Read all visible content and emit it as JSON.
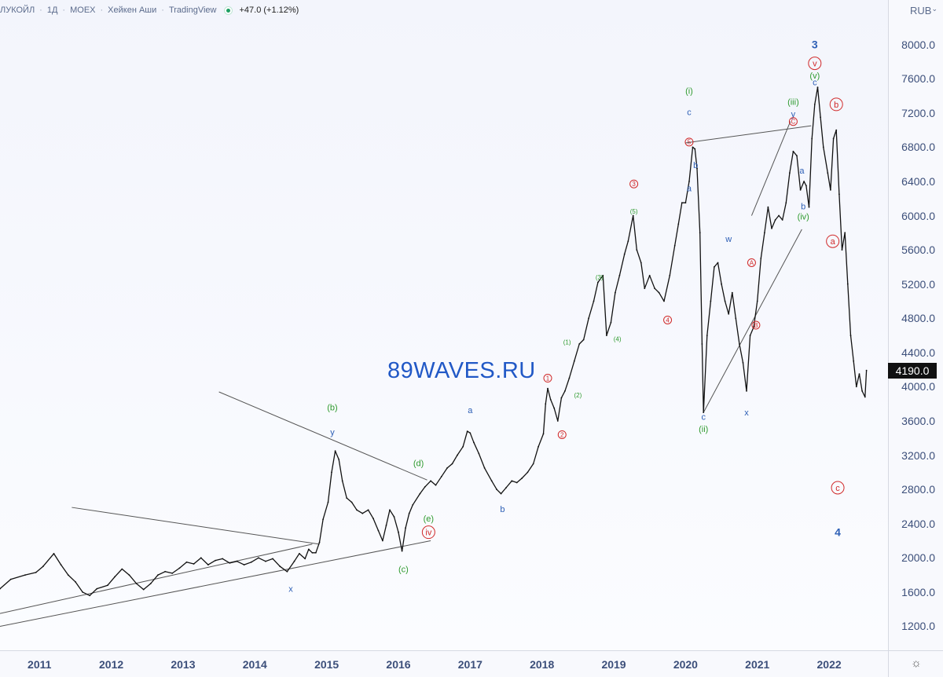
{
  "header": {
    "symbol": "ЛУКОЙЛ",
    "interval": "1Д",
    "exchange": "MOEX",
    "chart_style": "Хейкен Аши",
    "provider": "TradingView",
    "change": "+47.0 (+1.12%)"
  },
  "price_axis": {
    "currency": "RUB",
    "ticks": [
      "8000.0",
      "7600.0",
      "7200.0",
      "6800.0",
      "6400.0",
      "6000.0",
      "5600.0",
      "5200.0",
      "4800.0",
      "4400.0",
      "4000.0",
      "3600.0",
      "3200.0",
      "2800.0",
      "2400.0",
      "2000.0",
      "1600.0",
      "1200.0"
    ],
    "last_price": "4190.0"
  },
  "time_axis": {
    "ticks": [
      "2011",
      "2012",
      "2013",
      "2014",
      "2015",
      "2016",
      "2017",
      "2018",
      "2019",
      "2020",
      "2021",
      "2022"
    ]
  },
  "watermark": "89WAVES.RU",
  "colors": {
    "blue": "#2d5fb5",
    "green": "#2e9a2e",
    "red": "#d12a2a",
    "line": "#555555",
    "price": "#111111"
  },
  "chart_data": {
    "type": "line",
    "title": "",
    "xlabel": "",
    "ylabel": "",
    "ylim": [
      920,
      8520
    ],
    "xlim": [
      2010.45,
      2022.82
    ],
    "series": [
      {
        "name": "",
        "points": [
          [
            2010.45,
            1640
          ],
          [
            2010.6,
            1750
          ],
          [
            2010.8,
            1800
          ],
          [
            2010.95,
            1830
          ],
          [
            2011.05,
            1900
          ],
          [
            2011.2,
            2050
          ],
          [
            2011.3,
            1920
          ],
          [
            2011.4,
            1800
          ],
          [
            2011.5,
            1720
          ],
          [
            2011.6,
            1600
          ],
          [
            2011.7,
            1560
          ],
          [
            2011.8,
            1640
          ],
          [
            2011.95,
            1680
          ],
          [
            2012.05,
            1780
          ],
          [
            2012.15,
            1870
          ],
          [
            2012.25,
            1800
          ],
          [
            2012.35,
            1700
          ],
          [
            2012.45,
            1630
          ],
          [
            2012.55,
            1700
          ],
          [
            2012.65,
            1800
          ],
          [
            2012.75,
            1840
          ],
          [
            2012.85,
            1820
          ],
          [
            2012.95,
            1880
          ],
          [
            2013.05,
            1950
          ],
          [
            2013.15,
            1930
          ],
          [
            2013.25,
            2000
          ],
          [
            2013.35,
            1920
          ],
          [
            2013.45,
            1970
          ],
          [
            2013.55,
            1990
          ],
          [
            2013.65,
            1940
          ],
          [
            2013.75,
            1960
          ],
          [
            2013.85,
            1920
          ],
          [
            2013.95,
            1950
          ],
          [
            2014.05,
            2000
          ],
          [
            2014.15,
            1960
          ],
          [
            2014.25,
            1990
          ],
          [
            2014.35,
            1900
          ],
          [
            2014.45,
            1840
          ],
          [
            2014.55,
            1960
          ],
          [
            2014.62,
            2050
          ],
          [
            2014.7,
            1990
          ],
          [
            2014.75,
            2100
          ],
          [
            2014.8,
            2060
          ],
          [
            2014.85,
            2060
          ],
          [
            2014.9,
            2180
          ],
          [
            2014.95,
            2450
          ],
          [
            2015.02,
            2650
          ],
          [
            2015.07,
            3000
          ],
          [
            2015.12,
            3250
          ],
          [
            2015.17,
            3150
          ],
          [
            2015.22,
            2900
          ],
          [
            2015.28,
            2700
          ],
          [
            2015.35,
            2650
          ],
          [
            2015.42,
            2560
          ],
          [
            2015.5,
            2520
          ],
          [
            2015.58,
            2560
          ],
          [
            2015.65,
            2460
          ],
          [
            2015.72,
            2320
          ],
          [
            2015.78,
            2200
          ],
          [
            2015.83,
            2380
          ],
          [
            2015.88,
            2560
          ],
          [
            2015.94,
            2480
          ],
          [
            2016.0,
            2300
          ],
          [
            2016.05,
            2080
          ],
          [
            2016.1,
            2350
          ],
          [
            2016.15,
            2520
          ],
          [
            2016.2,
            2620
          ],
          [
            2016.3,
            2750
          ],
          [
            2016.37,
            2830
          ],
          [
            2016.45,
            2900
          ],
          [
            2016.52,
            2850
          ],
          [
            2016.6,
            2950
          ],
          [
            2016.68,
            3050
          ],
          [
            2016.75,
            3100
          ],
          [
            2016.82,
            3200
          ],
          [
            2016.9,
            3300
          ],
          [
            2016.96,
            3480
          ],
          [
            2017.0,
            3460
          ],
          [
            2017.05,
            3350
          ],
          [
            2017.12,
            3220
          ],
          [
            2017.2,
            3050
          ],
          [
            2017.3,
            2900
          ],
          [
            2017.37,
            2800
          ],
          [
            2017.43,
            2750
          ],
          [
            2017.5,
            2820
          ],
          [
            2017.58,
            2900
          ],
          [
            2017.65,
            2880
          ],
          [
            2017.72,
            2930
          ],
          [
            2017.8,
            3000
          ],
          [
            2017.88,
            3100
          ],
          [
            2017.95,
            3300
          ],
          [
            2018.02,
            3450
          ],
          [
            2018.05,
            3800
          ],
          [
            2018.08,
            3980
          ],
          [
            2018.12,
            3850
          ],
          [
            2018.17,
            3750
          ],
          [
            2018.22,
            3600
          ],
          [
            2018.27,
            3870
          ],
          [
            2018.32,
            3950
          ],
          [
            2018.38,
            4100
          ],
          [
            2018.45,
            4300
          ],
          [
            2018.52,
            4500
          ],
          [
            2018.58,
            4550
          ],
          [
            2018.65,
            4800
          ],
          [
            2018.72,
            5000
          ],
          [
            2018.78,
            5220
          ],
          [
            2018.85,
            5300
          ],
          [
            2018.9,
            4600
          ],
          [
            2018.96,
            4750
          ],
          [
            2019.02,
            5100
          ],
          [
            2019.08,
            5300
          ],
          [
            2019.15,
            5550
          ],
          [
            2019.2,
            5700
          ],
          [
            2019.27,
            6000
          ],
          [
            2019.32,
            5600
          ],
          [
            2019.38,
            5450
          ],
          [
            2019.43,
            5150
          ],
          [
            2019.5,
            5300
          ],
          [
            2019.57,
            5150
          ],
          [
            2019.63,
            5100
          ],
          [
            2019.7,
            5000
          ],
          [
            2019.78,
            5300
          ],
          [
            2019.85,
            5650
          ],
          [
            2019.9,
            5900
          ],
          [
            2019.95,
            6150
          ],
          [
            2020.0,
            6150
          ],
          [
            2020.05,
            6400
          ],
          [
            2020.1,
            6800
          ],
          [
            2020.13,
            6780
          ],
          [
            2020.16,
            6550
          ],
          [
            2020.2,
            5800
          ],
          [
            2020.23,
            4500
          ],
          [
            2020.25,
            3700
          ],
          [
            2020.3,
            4600
          ],
          [
            2020.35,
            5000
          ],
          [
            2020.4,
            5400
          ],
          [
            2020.45,
            5450
          ],
          [
            2020.5,
            5200
          ],
          [
            2020.55,
            5000
          ],
          [
            2020.6,
            4850
          ],
          [
            2020.65,
            5100
          ],
          [
            2020.7,
            4800
          ],
          [
            2020.75,
            4500
          ],
          [
            2020.8,
            4280
          ],
          [
            2020.85,
            3950
          ],
          [
            2020.9,
            4600
          ],
          [
            2020.95,
            4700
          ],
          [
            2021.0,
            5000
          ],
          [
            2021.05,
            5500
          ],
          [
            2021.1,
            5800
          ],
          [
            2021.15,
            6100
          ],
          [
            2021.2,
            5850
          ],
          [
            2021.25,
            5950
          ],
          [
            2021.3,
            6000
          ],
          [
            2021.35,
            5950
          ],
          [
            2021.4,
            6150
          ],
          [
            2021.45,
            6500
          ],
          [
            2021.5,
            6750
          ],
          [
            2021.55,
            6700
          ],
          [
            2021.6,
            6300
          ],
          [
            2021.65,
            6400
          ],
          [
            2021.68,
            6350
          ],
          [
            2021.72,
            6100
          ],
          [
            2021.76,
            6900
          ],
          [
            2021.8,
            7300
          ],
          [
            2021.84,
            7500
          ],
          [
            2021.88,
            7150
          ],
          [
            2021.92,
            6800
          ],
          [
            2021.98,
            6500
          ],
          [
            2022.02,
            6300
          ],
          [
            2022.06,
            6900
          ],
          [
            2022.1,
            7000
          ],
          [
            2022.14,
            6250
          ],
          [
            2022.18,
            5600
          ],
          [
            2022.22,
            5800
          ],
          [
            2022.26,
            5200
          ],
          [
            2022.3,
            4600
          ],
          [
            2022.34,
            4300
          ],
          [
            2022.38,
            4000
          ],
          [
            2022.42,
            4150
          ],
          [
            2022.46,
            3950
          ],
          [
            2022.5,
            3880
          ],
          [
            2022.52,
            4190
          ]
        ]
      }
    ],
    "wave_labels": [
      {
        "text": "x",
        "x": 2014.5,
        "y": 1640,
        "color": "blue"
      },
      {
        "text": "(b)",
        "x": 2015.08,
        "y": 3760,
        "color": "green"
      },
      {
        "text": "y",
        "x": 2015.08,
        "y": 3470,
        "color": "blue"
      },
      {
        "text": "(d)",
        "x": 2016.28,
        "y": 3110,
        "color": "green"
      },
      {
        "text": "(e)",
        "x": 2016.42,
        "y": 2460,
        "color": "green"
      },
      {
        "text": "iv",
        "x": 2016.42,
        "y": 2300,
        "color": "red",
        "circle": true
      },
      {
        "text": "(c)",
        "x": 2016.07,
        "y": 1870,
        "color": "green"
      },
      {
        "text": "a",
        "x": 2017.0,
        "y": 3730,
        "color": "blue"
      },
      {
        "text": "b",
        "x": 2017.45,
        "y": 2570,
        "color": "blue"
      },
      {
        "text": "1",
        "x": 2018.08,
        "y": 4100,
        "color": "red",
        "circle": true,
        "small": true
      },
      {
        "text": "2",
        "x": 2018.28,
        "y": 3440,
        "color": "red",
        "circle": true,
        "small": true
      },
      {
        "text": "(1)",
        "x": 2018.35,
        "y": 4520,
        "color": "green",
        "small": true
      },
      {
        "text": "(2)",
        "x": 2018.5,
        "y": 3900,
        "color": "green",
        "small": true
      },
      {
        "text": "(3)",
        "x": 2018.8,
        "y": 5280,
        "color": "green",
        "small": true
      },
      {
        "text": "(4)",
        "x": 2019.05,
        "y": 4560,
        "color": "green",
        "small": true
      },
      {
        "text": "(5)",
        "x": 2019.28,
        "y": 6050,
        "color": "green",
        "small": true
      },
      {
        "text": "3",
        "x": 2019.28,
        "y": 6370,
        "color": "red",
        "circle": true,
        "small": true
      },
      {
        "text": "4",
        "x": 2019.75,
        "y": 4780,
        "color": "red",
        "circle": true,
        "small": true
      },
      {
        "text": "(i)",
        "x": 2020.05,
        "y": 7460,
        "color": "green"
      },
      {
        "text": "c",
        "x": 2020.05,
        "y": 7210,
        "color": "blue"
      },
      {
        "text": "5",
        "x": 2020.05,
        "y": 6860,
        "color": "red",
        "circle": true,
        "small": true
      },
      {
        "text": "b",
        "x": 2020.14,
        "y": 6590,
        "color": "blue"
      },
      {
        "text": "a",
        "x": 2020.05,
        "y": 6320,
        "color": "blue"
      },
      {
        "text": "c",
        "x": 2020.25,
        "y": 3650,
        "color": "blue"
      },
      {
        "text": "(ii)",
        "x": 2020.25,
        "y": 3510,
        "color": "green"
      },
      {
        "text": "w",
        "x": 2020.6,
        "y": 5730,
        "color": "blue"
      },
      {
        "text": "x",
        "x": 2020.85,
        "y": 3700,
        "color": "blue"
      },
      {
        "text": "A",
        "x": 2020.92,
        "y": 5450,
        "color": "red",
        "circle": true,
        "small": true
      },
      {
        "text": "B",
        "x": 2020.98,
        "y": 4720,
        "color": "red",
        "circle": true,
        "small": true
      },
      {
        "text": "(iii)",
        "x": 2021.5,
        "y": 7330,
        "color": "green"
      },
      {
        "text": "y",
        "x": 2021.5,
        "y": 7190,
        "color": "blue"
      },
      {
        "text": "C",
        "x": 2021.5,
        "y": 7100,
        "color": "red",
        "circle": true,
        "small": true
      },
      {
        "text": "a",
        "x": 2021.62,
        "y": 6530,
        "color": "blue"
      },
      {
        "text": "b",
        "x": 2021.64,
        "y": 6110,
        "color": "blue"
      },
      {
        "text": "(iv)",
        "x": 2021.64,
        "y": 5990,
        "color": "green"
      },
      {
        "text": "3",
        "x": 2021.8,
        "y": 8000,
        "color": "blue",
        "bold": true
      },
      {
        "text": "v",
        "x": 2021.8,
        "y": 7780,
        "color": "red",
        "circle": true
      },
      {
        "text": "(v)",
        "x": 2021.8,
        "y": 7640,
        "color": "green"
      },
      {
        "text": "c",
        "x": 2021.8,
        "y": 7560,
        "color": "blue"
      },
      {
        "text": "b",
        "x": 2022.1,
        "y": 7300,
        "color": "red",
        "circle": true
      },
      {
        "text": "a",
        "x": 2022.05,
        "y": 5700,
        "color": "red",
        "circle": true
      },
      {
        "text": "c",
        "x": 2022.12,
        "y": 2820,
        "color": "red",
        "circle": true
      },
      {
        "text": "4",
        "x": 2022.12,
        "y": 2300,
        "color": "blue",
        "bold": true
      }
    ],
    "trend_lines": [
      [
        [
          2010.45,
          1350
        ],
        [
          2014.8,
          2160
        ]
      ],
      [
        [
          2010.45,
          1200
        ],
        [
          2016.45,
          2200
        ]
      ],
      [
        [
          2011.45,
          2590
        ],
        [
          2014.9,
          2160
        ]
      ],
      [
        [
          2013.5,
          3940
        ],
        [
          2016.4,
          2910
        ]
      ],
      [
        [
          2020.0,
          6850
        ],
        [
          2021.75,
          7050
        ]
      ],
      [
        [
          2020.25,
          3700
        ],
        [
          2021.62,
          5840
        ]
      ],
      [
        [
          2020.92,
          6000
        ],
        [
          2021.46,
          7100
        ]
      ]
    ]
  }
}
